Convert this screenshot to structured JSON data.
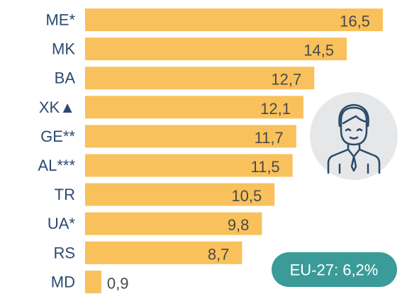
{
  "chart_data": {
    "type": "bar",
    "orientation": "horizontal",
    "categories": [
      "ME*",
      "MK",
      "BA",
      "XK▲",
      "GE**",
      "AL***",
      "TR",
      "UA*",
      "RS",
      "MD"
    ],
    "values": [
      16.5,
      14.5,
      12.7,
      12.1,
      11.7,
      11.5,
      10.5,
      9.8,
      8.7,
      0.9
    ],
    "value_labels": [
      "16,5",
      "14,5",
      "12,7",
      "12,1",
      "11,7",
      "11,5",
      "10,5",
      "9,8",
      "8,7",
      "0,9"
    ],
    "color": "#f9c15c",
    "annotation": "EU-27: 6,2%"
  }
}
